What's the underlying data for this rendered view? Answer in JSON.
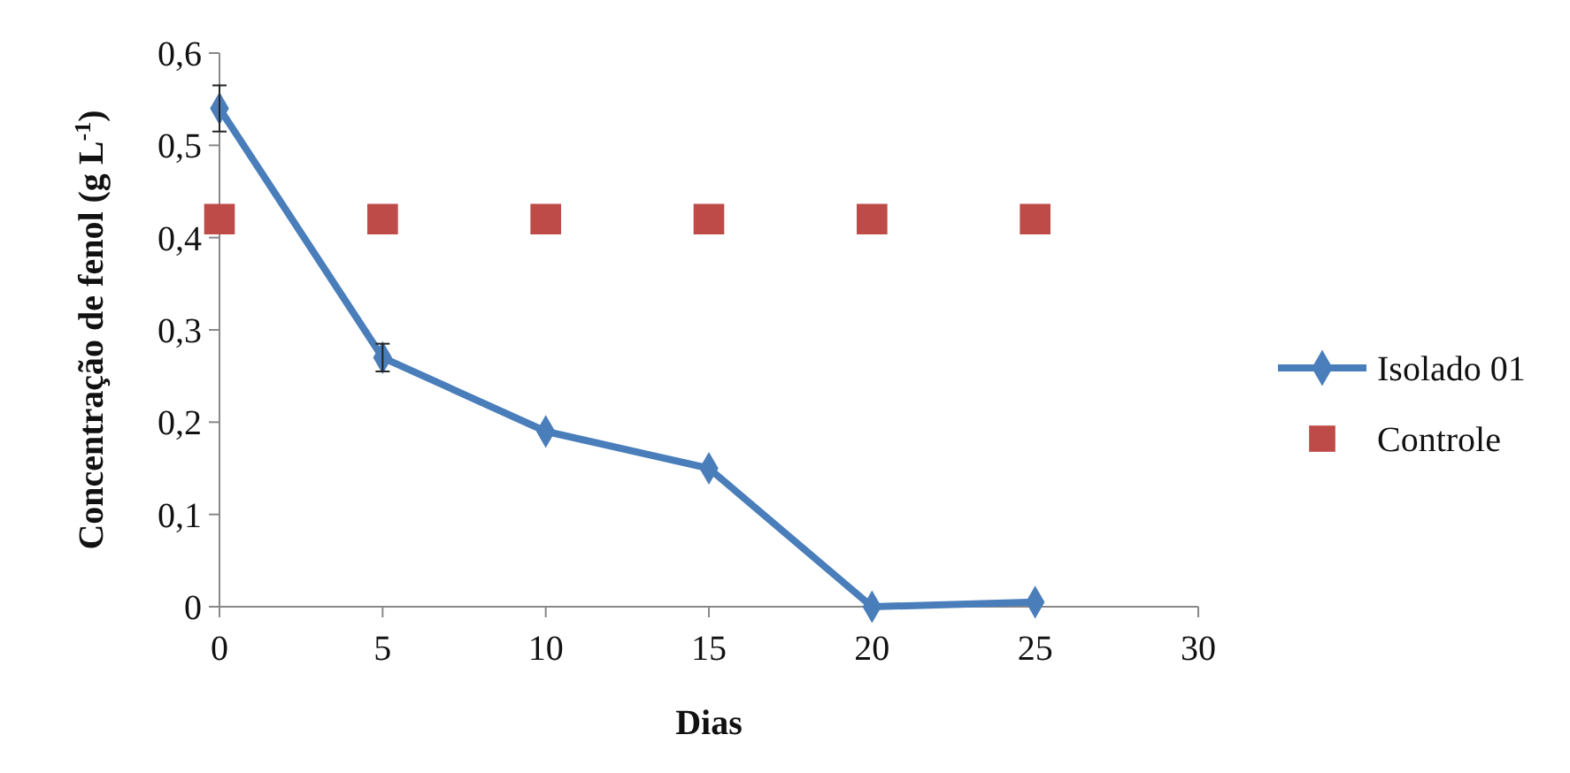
{
  "chart_data": {
    "type": "line",
    "xlabel": "Dias",
    "ylabel": "Concentração de fenol (g L$^{-1}$)",
    "x": [
      0,
      5,
      10,
      15,
      20,
      25
    ],
    "series": [
      {
        "name": "Isolado 01",
        "color": "#4a7ebb",
        "marker": "diamond",
        "values": [
          0.54,
          0.27,
          0.19,
          0.15,
          0,
          0.005
        ],
        "errors": [
          0.025,
          0.015,
          null,
          null,
          null,
          null
        ]
      },
      {
        "name": "Controle",
        "type": "scatter",
        "color": "#be4b48",
        "marker": "square",
        "values": [
          0.42,
          0.42,
          0.42,
          0.42,
          0.42,
          0.42
        ]
      }
    ],
    "xlim": [
      0,
      30
    ],
    "xticks": [
      0,
      5,
      10,
      15,
      20,
      25,
      30
    ],
    "ylim": [
      0,
      0.6
    ],
    "yticks": [
      {
        "value": 0,
        "label": "0"
      },
      {
        "value": 0.1,
        "label": "0,1"
      },
      {
        "value": 0.2,
        "label": "0,2"
      },
      {
        "value": 0.3,
        "label": "0,3"
      },
      {
        "value": 0.4,
        "label": "0,4"
      },
      {
        "value": 0.5,
        "label": "0,5"
      },
      {
        "value": 0.6,
        "label": "0,6"
      }
    ],
    "legend": "right",
    "grid": false
  }
}
